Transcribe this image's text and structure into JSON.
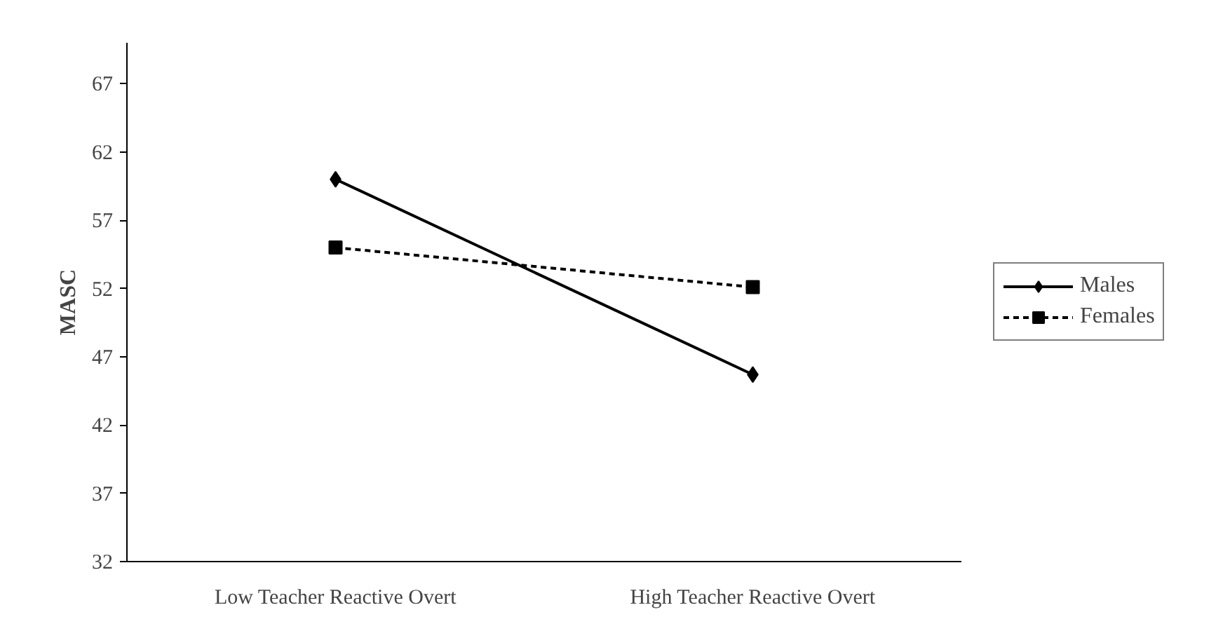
{
  "chart_data": {
    "type": "line",
    "ylabel": "MASC",
    "categories": [
      "Low Teacher Reactive Overt",
      "High Teacher Reactive Overt"
    ],
    "series": [
      {
        "name": "Males",
        "color": "#000000",
        "values": [
          60.0,
          45.7
        ],
        "marker": "diamond",
        "line_style": "solid"
      },
      {
        "name": "Females",
        "color": "#000000",
        "values": [
          55.0,
          52.1
        ],
        "marker": "square",
        "line_style": "dashed"
      }
    ],
    "ylim": [
      32,
      70
    ],
    "yticks": [
      32,
      37,
      42,
      47,
      52,
      57,
      62,
      67
    ],
    "grid": false,
    "legend": "right"
  }
}
